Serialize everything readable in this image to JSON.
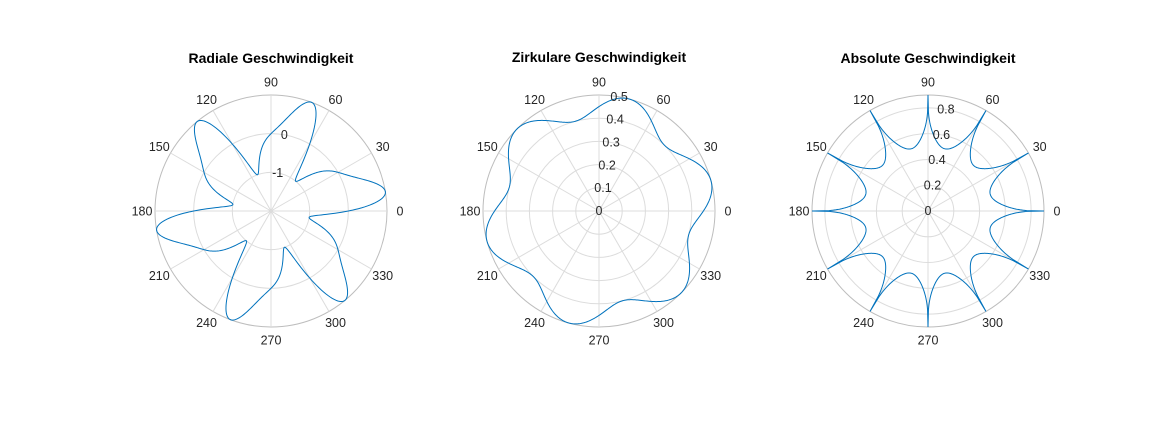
{
  "chart_data": [
    {
      "type": "polar-line",
      "title": "Radiale Geschwindigkeit",
      "angle_unit": "degrees",
      "theta_ticks": [
        0,
        30,
        60,
        90,
        120,
        150,
        180,
        210,
        240,
        270,
        300,
        330
      ],
      "r_range": [
        -2,
        1
      ],
      "r_ticks": [
        -1,
        0
      ],
      "r_tick_labels": [
        "-1",
        "0"
      ],
      "r_tick_angle_deg": 80,
      "grid": true,
      "series": [
        {
          "color": "#0072BD",
          "expression": "r = sin(6*theta + 4*sin(6*theta) / 6)",
          "theta_range_deg": [
            0,
            360
          ],
          "samples": 720
        }
      ]
    },
    {
      "type": "polar-line",
      "title": "Zirkulare Geschwindigkeit",
      "angle_unit": "degrees",
      "theta_ticks": [
        0,
        30,
        60,
        90,
        120,
        150,
        180,
        210,
        240,
        270,
        300,
        330
      ],
      "r_range": [
        0,
        0.5
      ],
      "r_ticks": [
        0,
        0.1,
        0.2,
        0.3,
        0.4,
        0.5
      ],
      "r_tick_labels": [
        "0",
        "0.1",
        "0.2",
        "0.3",
        "0.4",
        "0.5"
      ],
      "r_tick_angle_deg": 80,
      "grid": true,
      "series": [
        {
          "color": "#0072BD",
          "expression": "r = 0.45 + 0.05*cos(6*theta - 90deg)",
          "theta_range_deg": [
            0,
            360
          ],
          "samples": 720
        }
      ]
    },
    {
      "type": "polar-line",
      "title": "Absolute Geschwindigkeit",
      "angle_unit": "degrees",
      "theta_ticks": [
        0,
        30,
        60,
        90,
        120,
        150,
        180,
        210,
        240,
        270,
        300,
        330
      ],
      "r_range": [
        0,
        0.9
      ],
      "r_ticks": [
        0,
        0.2,
        0.4,
        0.6,
        0.8
      ],
      "r_tick_labels": [
        "0",
        "0.2",
        "0.4",
        "0.6",
        "0.8"
      ],
      "r_tick_angle_deg": 80,
      "grid": true,
      "series": [
        {
          "color": "#0072BD",
          "expression": "r = 0.9 - 0.4*|sin(6*theta)|^0.3",
          "theta_range_deg": [
            0,
            360
          ],
          "samples": 1440
        }
      ]
    }
  ]
}
